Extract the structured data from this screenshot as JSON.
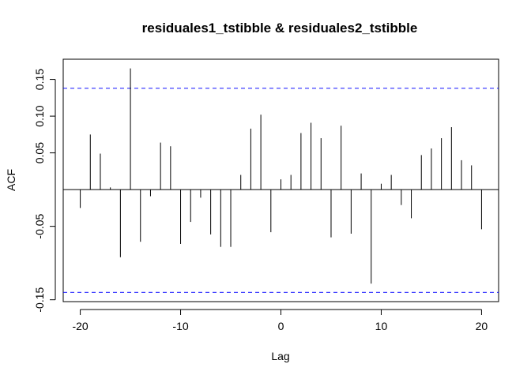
{
  "chart_data": {
    "type": "bar",
    "title": "residuales1_tstibble & residuales2_tstibble",
    "xlabel": "Lag",
    "ylabel": "ACF",
    "xlim": [
      -21.7,
      21.7
    ],
    "ylim": [
      -0.1525,
      0.1775
    ],
    "x_ticks": [
      -20,
      -10,
      0,
      10,
      20
    ],
    "y_ticks": [
      -0.15,
      -0.05,
      0.05,
      0.1,
      0.15
    ],
    "y_tick_labels": [
      "-0.15",
      "-0.05",
      "0.05",
      "0.10",
      "0.15"
    ],
    "confidence_limits": [
      0.138,
      -0.14
    ],
    "confidence_line_color": "#0000ff",
    "zero_line": true,
    "grid": false,
    "lags": [
      -20,
      -19,
      -18,
      -17,
      -16,
      -15,
      -14,
      -13,
      -12,
      -11,
      -10,
      -9,
      -8,
      -7,
      -6,
      -5,
      -4,
      -3,
      -2,
      -1,
      0,
      1,
      2,
      3,
      4,
      5,
      6,
      7,
      8,
      9,
      10,
      11,
      12,
      13,
      14,
      15,
      16,
      17,
      18,
      19,
      20
    ],
    "values": [
      -0.025,
      0.075,
      0.049,
      0.003,
      -0.092,
      0.165,
      -0.071,
      -0.009,
      0.064,
      0.059,
      -0.074,
      -0.044,
      -0.011,
      -0.061,
      -0.078,
      -0.078,
      0.02,
      0.083,
      0.102,
      -0.058,
      0.014,
      0.02,
      0.077,
      0.091,
      0.07,
      -0.065,
      0.087,
      -0.06,
      0.022,
      -0.128,
      0.008,
      0.02,
      -0.021,
      -0.039,
      0.047,
      0.056,
      0.07,
      0.085,
      0.04,
      0.033,
      -0.054
    ]
  }
}
